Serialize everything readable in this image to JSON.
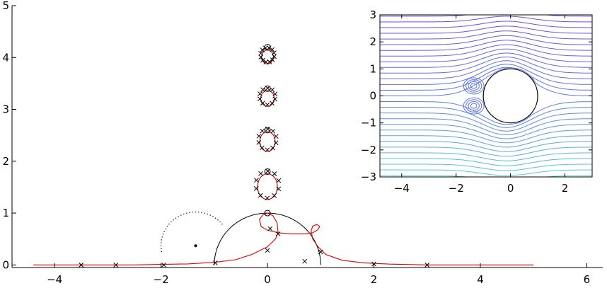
{
  "chart_data": [
    {
      "type": "scatter",
      "name": "main",
      "xlim": [
        -4.8,
        6.3
      ],
      "ylim": [
        -0.05,
        5
      ],
      "xticks": [
        -4,
        -2,
        0,
        2,
        4,
        6
      ],
      "yticks": [
        0,
        1,
        2,
        3,
        4,
        5
      ],
      "xtick_labels": [
        "−4",
        "−2",
        "0",
        "2",
        "4",
        "6"
      ],
      "ytick_labels": [
        "0",
        "1",
        "2",
        "3",
        "4",
        "5"
      ],
      "colors": {
        "curve": "#e00000",
        "circle": "#000000",
        "marker": "#000000"
      },
      "unit_circle": {
        "center": [
          0,
          0
        ],
        "radius": 1,
        "from_deg": 0,
        "to_deg": 180
      },
      "dotted_arc": {
        "center": [
          -1.35,
          0.37
        ],
        "radius": 0.65,
        "from_deg": 40,
        "to_deg": 190
      },
      "dot": [
        -1.35,
        0.37
      ],
      "zeros_o": [
        [
          0,
          1
        ],
        [
          0,
          1.8
        ],
        [
          0,
          2.6
        ],
        [
          0,
          3.4
        ],
        [
          0,
          4.2
        ]
      ],
      "poles_x_axis": [
        [
          -3.5,
          0
        ],
        [
          -2.85,
          0
        ],
        [
          -1.95,
          0
        ],
        [
          -0.98,
          0.04
        ],
        [
          0.7,
          0.07
        ],
        [
          2.0,
          0.02
        ],
        [
          3.0,
          0.0
        ]
      ],
      "poles_other": [
        [
          0.2,
          0.6
        ],
        [
          0.0,
          0.28
        ],
        [
          1.0,
          0.25
        ],
        [
          0.05,
          0.7
        ]
      ],
      "clusters": [
        {
          "center": [
            0,
            4.05
          ],
          "rx": 0.13,
          "ry": 0.14,
          "n": 12
        },
        {
          "center": [
            0,
            3.25
          ],
          "rx": 0.15,
          "ry": 0.16,
          "n": 10
        },
        {
          "center": [
            0,
            2.42
          ],
          "rx": 0.17,
          "ry": 0.2,
          "n": 10
        },
        {
          "center": [
            0,
            1.55
          ],
          "rx": 0.22,
          "ry": 0.26,
          "n": 10
        }
      ],
      "red_curve_main": [
        [
          -4.4,
          0.0
        ],
        [
          -3.5,
          0.0
        ],
        [
          -3.0,
          0.0
        ],
        [
          -2.5,
          0.0
        ],
        [
          -2.0,
          0.01
        ],
        [
          -1.5,
          0.02
        ],
        [
          -1.0,
          0.05
        ],
        [
          -0.6,
          0.1
        ],
        [
          -0.3,
          0.2
        ],
        [
          0.0,
          0.35
        ],
        [
          0.15,
          0.5
        ],
        [
          0.2,
          0.62
        ],
        [
          0.18,
          0.82
        ],
        [
          0.1,
          0.95
        ],
        [
          0.0,
          1.0
        ],
        [
          -0.08,
          0.97
        ],
        [
          -0.15,
          0.88
        ],
        [
          -0.12,
          0.74
        ],
        [
          0.0,
          0.67
        ],
        [
          0.2,
          0.62
        ],
        [
          0.45,
          0.6
        ],
        [
          0.7,
          0.6
        ],
        [
          0.85,
          0.62
        ],
        [
          0.95,
          0.68
        ],
        [
          0.98,
          0.74
        ],
        [
          0.93,
          0.78
        ],
        [
          0.85,
          0.75
        ],
        [
          0.82,
          0.66
        ],
        [
          0.85,
          0.5
        ],
        [
          0.95,
          0.35
        ],
        [
          1.1,
          0.2
        ],
        [
          1.4,
          0.09
        ],
        [
          1.8,
          0.04
        ],
        [
          2.3,
          0.015
        ],
        [
          3.0,
          0.0
        ],
        [
          4.0,
          0.0
        ],
        [
          5.0,
          0.0
        ]
      ]
    },
    {
      "type": "line",
      "name": "inset",
      "xlim": [
        -4.8,
        3
      ],
      "ylim": [
        -3,
        3
      ],
      "xticks": [
        -4,
        -2,
        0,
        2
      ],
      "yticks": [
        -3,
        -2,
        -1,
        0,
        1,
        2,
        3
      ],
      "xtick_labels": [
        "−4",
        "−2",
        "0",
        "2"
      ],
      "ytick_labels": [
        "−3",
        "−2",
        "−1",
        "0",
        "1",
        "2",
        "3"
      ],
      "cylinder": {
        "center": [
          0,
          0
        ],
        "radius": 1
      },
      "streamline_levels": 29,
      "vortices": [
        [
          -1.35,
          0.37
        ],
        [
          -1.35,
          -0.37
        ]
      ],
      "colors": {
        "top": "#7b46d8",
        "middle": "#5a78e8",
        "bottom": "#58d2d2",
        "circle": "#000000"
      }
    }
  ]
}
